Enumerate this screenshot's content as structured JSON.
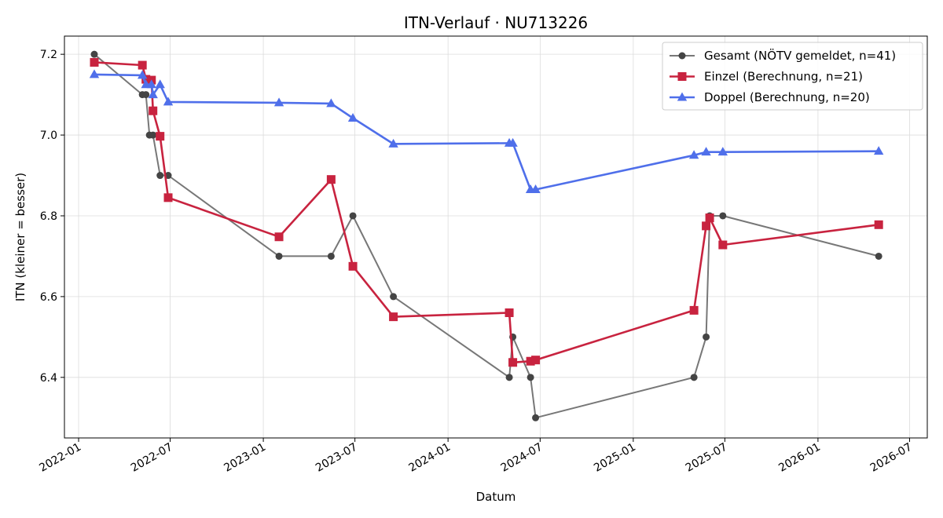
{
  "chart_data": {
    "type": "line",
    "title": "ITN-Verlauf · NU713226",
    "xlabel": "Datum",
    "ylabel": "ITN  (kleiner = besser)",
    "x_axis": "date",
    "xlim": [
      "2021-12-04",
      "2026-08-05"
    ],
    "ylim": [
      6.25,
      7.245
    ],
    "xticks": [
      "2022-01",
      "2022-07",
      "2023-01",
      "2023-07",
      "2024-01",
      "2024-07",
      "2025-01",
      "2025-07",
      "2026-01",
      "2026-07"
    ],
    "yticks": [
      "6.4",
      "6.6",
      "6.8",
      "7.0",
      "7.2"
    ],
    "grid": true,
    "legend_position": "top-right",
    "series": [
      {
        "name": "Gesamt (NÖTV gemeldet, n=41)",
        "color": "#777777",
        "marker_color": "#444444",
        "marker": "circle",
        "points": [
          [
            "2022-02-01",
            7.2
          ],
          [
            "2022-05-07",
            7.1
          ],
          [
            "2022-05-14",
            7.1
          ],
          [
            "2022-05-21",
            7.0
          ],
          [
            "2022-05-28",
            7.0
          ],
          [
            "2022-06-11",
            6.9
          ],
          [
            "2022-06-27",
            6.9
          ],
          [
            "2023-02-01",
            6.7
          ],
          [
            "2023-05-15",
            6.7
          ],
          [
            "2023-06-27",
            6.8
          ],
          [
            "2023-09-15",
            6.6
          ],
          [
            "2024-05-01",
            6.4
          ],
          [
            "2024-05-08",
            6.5
          ],
          [
            "2024-06-12",
            6.4
          ],
          [
            "2024-06-22",
            6.3
          ],
          [
            "2025-05-01",
            6.4
          ],
          [
            "2025-05-25",
            6.5
          ],
          [
            "2025-06-01",
            6.8
          ],
          [
            "2025-06-27",
            6.8
          ],
          [
            "2026-05-01",
            6.7
          ]
        ]
      },
      {
        "name": "Einzel (Berechnung, n=21)",
        "color": "#c8233f",
        "marker": "square",
        "points": [
          [
            "2022-02-01",
            7.18
          ],
          [
            "2022-05-07",
            7.173
          ],
          [
            "2022-05-14",
            7.138
          ],
          [
            "2022-05-25",
            7.136
          ],
          [
            "2022-05-28",
            7.06
          ],
          [
            "2022-06-11",
            6.997
          ],
          [
            "2022-06-27",
            6.845
          ],
          [
            "2023-02-01",
            6.748
          ],
          [
            "2023-05-15",
            6.89
          ],
          [
            "2023-06-27",
            6.675
          ],
          [
            "2023-09-15",
            6.55
          ],
          [
            "2024-05-01",
            6.56
          ],
          [
            "2024-05-08",
            6.437
          ],
          [
            "2024-06-12",
            6.44
          ],
          [
            "2024-06-22",
            6.443
          ],
          [
            "2025-05-01",
            6.566
          ],
          [
            "2025-05-25",
            6.775
          ],
          [
            "2025-06-01",
            6.795
          ],
          [
            "2025-06-27",
            6.728
          ],
          [
            "2026-05-01",
            6.778
          ]
        ]
      },
      {
        "name": "Doppel (Berechnung, n=20)",
        "color": "#4f6fea",
        "marker": "triangle",
        "points": [
          [
            "2022-02-01",
            7.15
          ],
          [
            "2022-05-07",
            7.148
          ],
          [
            "2022-05-14",
            7.125
          ],
          [
            "2022-05-25",
            7.125
          ],
          [
            "2022-05-28",
            7.1
          ],
          [
            "2022-06-11",
            7.125
          ],
          [
            "2022-06-27",
            7.082
          ],
          [
            "2023-02-01",
            7.08
          ],
          [
            "2023-05-15",
            7.078
          ],
          [
            "2023-06-27",
            7.042
          ],
          [
            "2023-09-15",
            6.978
          ],
          [
            "2024-05-01",
            6.98
          ],
          [
            "2024-05-08",
            6.98
          ],
          [
            "2024-06-12",
            6.865
          ],
          [
            "2024-06-22",
            6.865
          ],
          [
            "2025-05-01",
            6.95
          ],
          [
            "2025-05-25",
            6.958
          ],
          [
            "2025-06-27",
            6.958
          ],
          [
            "2026-05-01",
            6.96
          ]
        ]
      }
    ]
  }
}
